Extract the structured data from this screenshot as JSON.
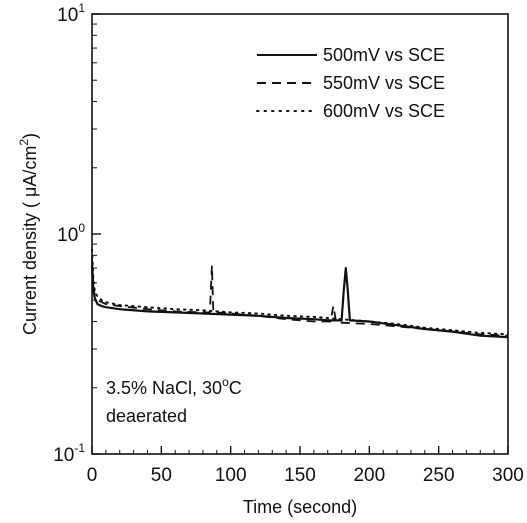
{
  "chart_data": {
    "type": "line",
    "xlabel": "Time (second)",
    "ylabel": "Current density ( μA/cm²)",
    "ylabel_parts": {
      "base": "Current density ( μA/cm",
      "sup": "2",
      "close": ")"
    },
    "xlim": [
      0,
      300
    ],
    "ylim": [
      0.1,
      10
    ],
    "yscale": "log",
    "x_ticks": [
      "0",
      "50",
      "100",
      "150",
      "200",
      "250",
      "300"
    ],
    "y_ticks": [
      {
        "base": "10",
        "exp": "-1",
        "value": 0.1
      },
      {
        "base": "10",
        "exp": "0",
        "value": 1
      },
      {
        "base": "10",
        "exp": "1",
        "value": 10
      }
    ],
    "grid": false,
    "legend_position": "top-right",
    "annotation_lines": [
      "3.5% NaCl, 30°C",
      "deaerated"
    ],
    "annotation_parts": {
      "pre": "3.5% NaCl, 30",
      "sup": "o",
      "post": "C"
    },
    "series": [
      {
        "name": "500mV vs SCE",
        "style": "solid",
        "x": [
          0,
          1,
          2,
          4,
          7,
          10,
          20,
          40,
          60,
          80,
          100,
          120,
          140,
          160,
          170,
          180,
          181.5,
          183,
          184.5,
          186,
          200,
          220,
          240,
          260,
          280,
          300
        ],
        "y": [
          0.72,
          0.56,
          0.51,
          0.48,
          0.47,
          0.465,
          0.455,
          0.445,
          0.44,
          0.435,
          0.43,
          0.425,
          0.415,
          0.41,
          0.405,
          0.405,
          0.55,
          0.7,
          0.55,
          0.405,
          0.4,
          0.385,
          0.37,
          0.36,
          0.345,
          0.34
        ]
      },
      {
        "name": "550mV vs SCE",
        "style": "dashed",
        "x": [
          0,
          1,
          2,
          4,
          7,
          10,
          20,
          40,
          60,
          80,
          85,
          86.5,
          87.5,
          89,
          100,
          120,
          140,
          160,
          172,
          174,
          176,
          180,
          200,
          220,
          240,
          260,
          280,
          300
        ],
        "y": [
          0.78,
          0.58,
          0.52,
          0.5,
          0.49,
          0.48,
          0.47,
          0.455,
          0.445,
          0.44,
          0.44,
          0.72,
          0.44,
          0.44,
          0.435,
          0.425,
          0.41,
          0.4,
          0.4,
          0.47,
          0.4,
          0.395,
          0.39,
          0.38,
          0.37,
          0.36,
          0.35,
          0.345
        ]
      },
      {
        "name": "600mV vs SCE",
        "style": "dotted",
        "x": [
          0,
          1,
          2,
          4,
          7,
          10,
          20,
          40,
          60,
          80,
          100,
          120,
          140,
          160,
          180,
          200,
          220,
          240,
          260,
          280,
          300
        ],
        "y": [
          0.85,
          0.62,
          0.55,
          0.52,
          0.5,
          0.49,
          0.475,
          0.465,
          0.455,
          0.45,
          0.44,
          0.435,
          0.425,
          0.42,
          0.41,
          0.4,
          0.39,
          0.375,
          0.365,
          0.355,
          0.35
        ]
      }
    ]
  }
}
